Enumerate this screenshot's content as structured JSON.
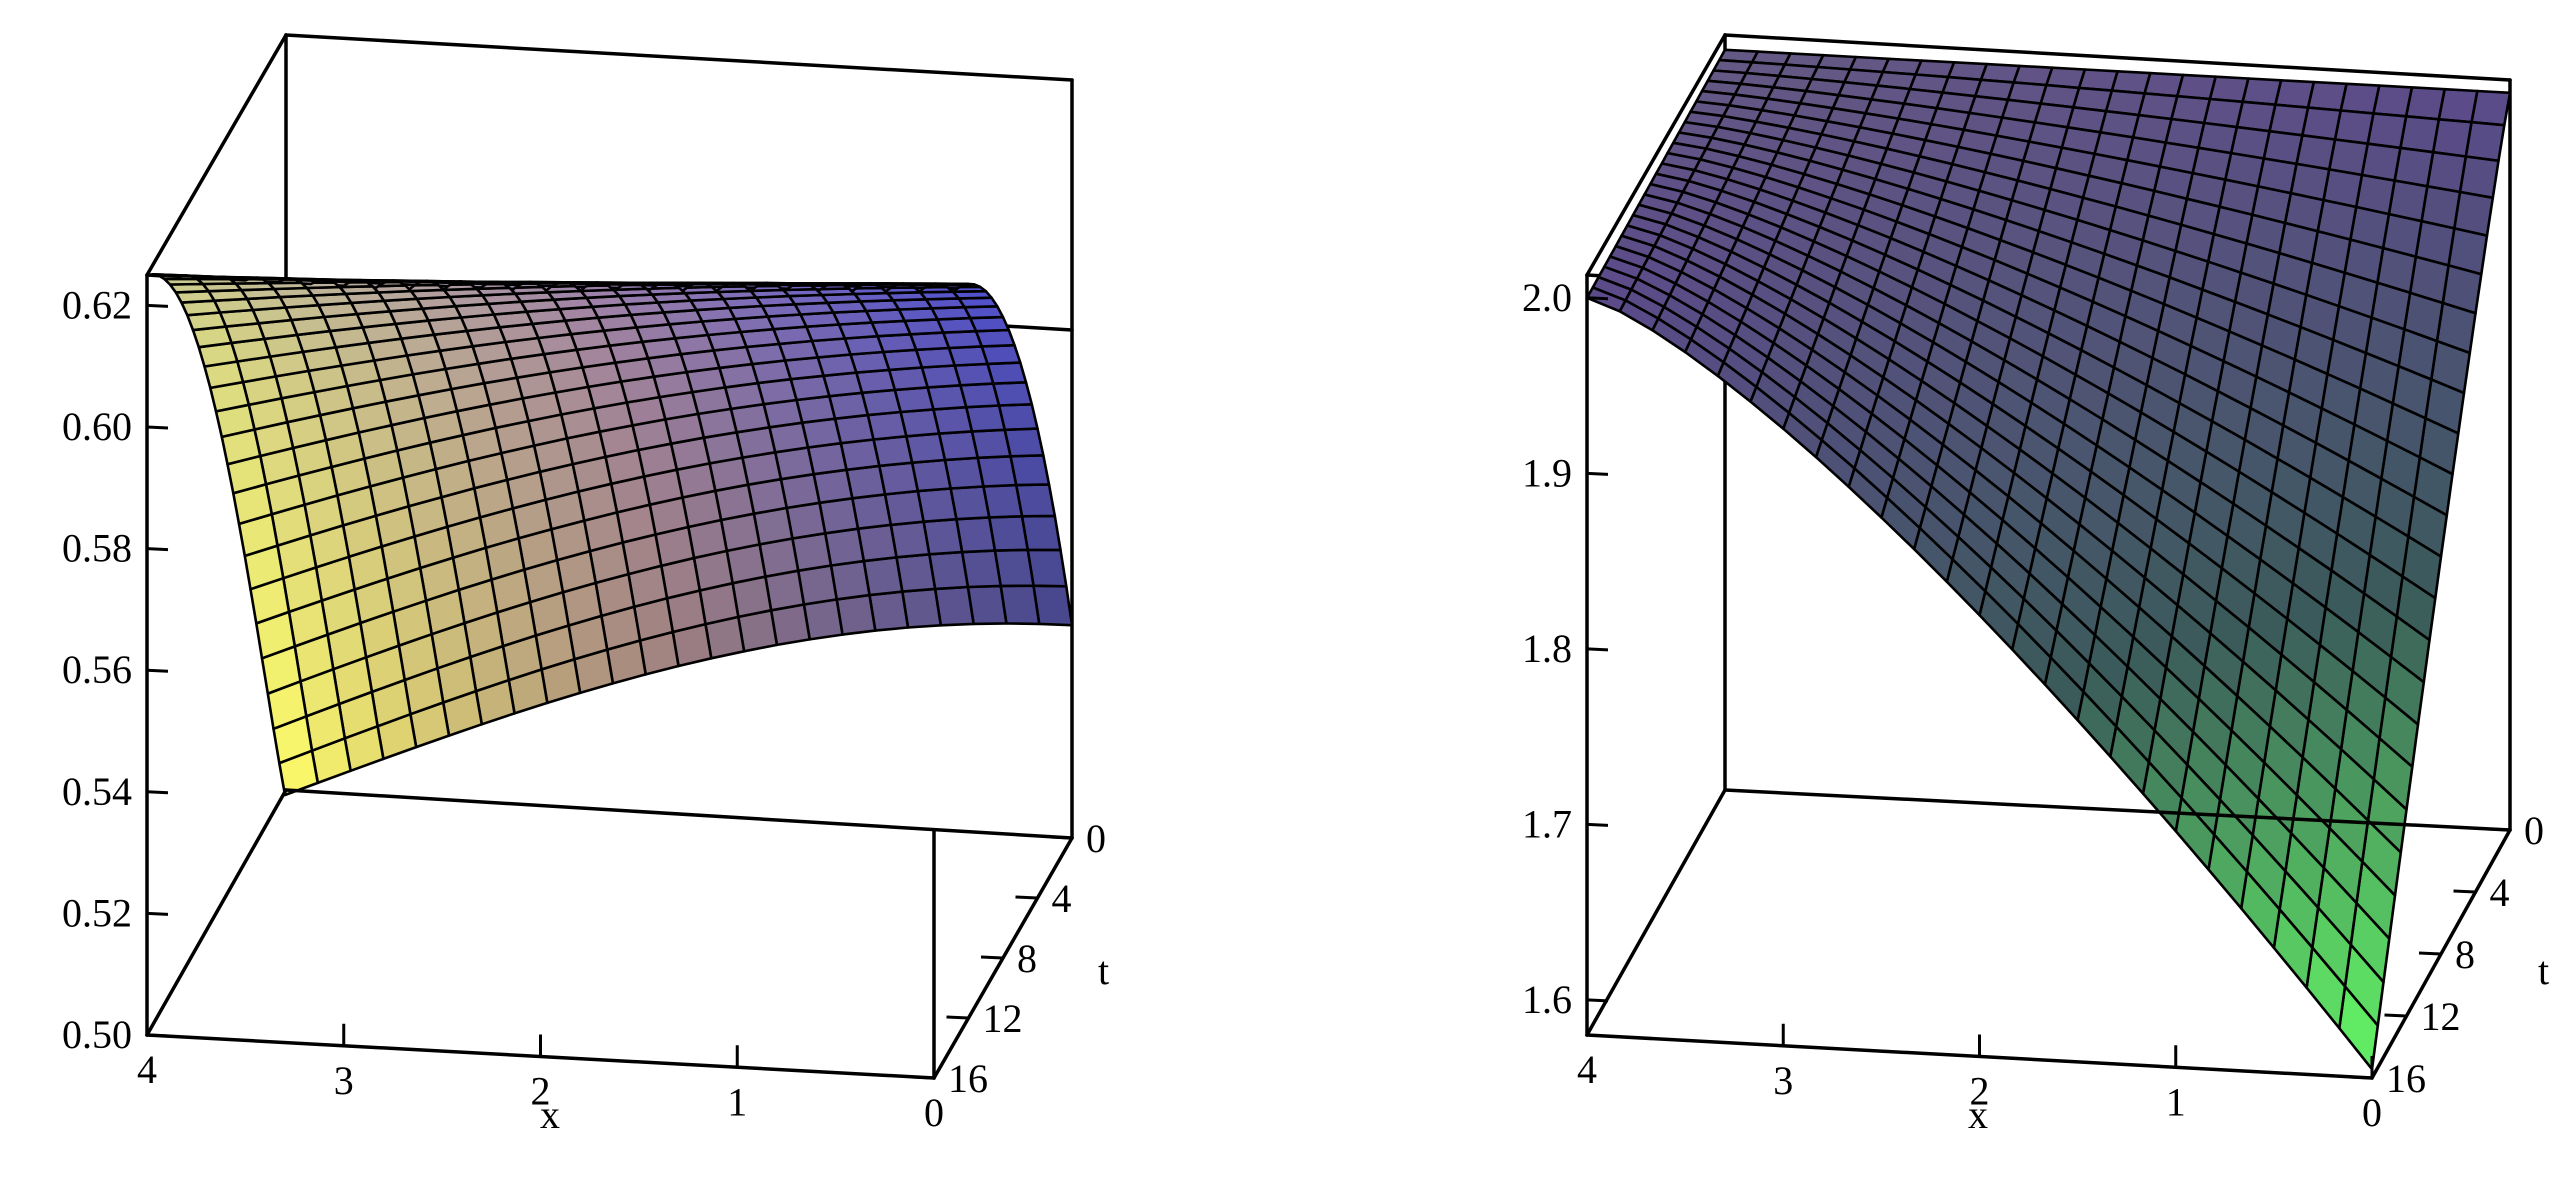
{
  "chart_data": [
    {
      "type": "surface",
      "title": "",
      "x_axis": {
        "label": "x",
        "range": [
          0,
          4
        ],
        "ticks": [
          "0",
          "1",
          "2",
          "3",
          "4"
        ]
      },
      "t_axis": {
        "label": "t",
        "range": [
          0,
          16
        ],
        "ticks": [
          "0",
          "4",
          "8",
          "12",
          "16"
        ]
      },
      "z_axis": {
        "label": "",
        "range": [
          0.5,
          0.625
        ],
        "ticks": [
          "0.50",
          "0.52",
          "0.54",
          "0.56",
          "0.58",
          "0.60",
          "0.62"
        ]
      },
      "corner_values": {
        "x0_t0": 0.535,
        "x0_t16": 0.625,
        "x4_t0": 0.5,
        "x4_t16": 0.625
      },
      "colors": {
        "low_x_high": "#ffff66",
        "mid": "#c49a9a",
        "high_x_low": "#5555ee",
        "dark": "#3a3a3a"
      },
      "grid": true
    },
    {
      "type": "surface",
      "title": "",
      "x_axis": {
        "label": "x",
        "range": [
          0,
          4
        ],
        "ticks": [
          "0",
          "1",
          "2",
          "3",
          "4"
        ]
      },
      "t_axis": {
        "label": "t",
        "range": [
          0,
          16
        ],
        "ticks": [
          "0",
          "4",
          "8",
          "12",
          "16"
        ]
      },
      "z_axis": {
        "label": "",
        "range": [
          1.58,
          2.0
        ],
        "ticks": [
          "1.6",
          "1.7",
          "1.8",
          "1.9",
          "2.0"
        ]
      },
      "corner_values": {
        "x0_t0": 2.0,
        "x0_t16": 1.585,
        "x4_t0": 2.0,
        "x4_t16": 2.0
      },
      "colors": {
        "low": "#66ff66",
        "mid": "#3a5a5a",
        "high": "#5b4a8a",
        "edge": "#777777"
      },
      "grid": true
    }
  ]
}
